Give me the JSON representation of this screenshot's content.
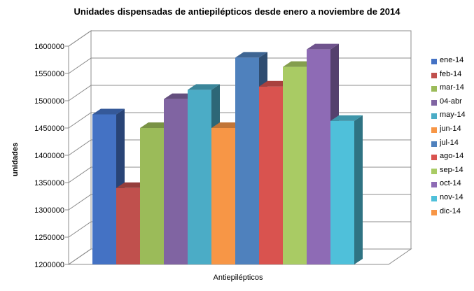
{
  "chart_data": {
    "type": "bar",
    "title": "Unidades dispensadas de antiepilépticos desde enero a noviembre de 2014",
    "ylabel": "unidades",
    "xlabel": "Antiepilépticos",
    "categories": [
      "Antiepilépticos"
    ],
    "ylim": [
      1200000,
      1600000
    ],
    "yticks": [
      "1200000",
      "1250000",
      "1300000",
      "1350000",
      "1400000",
      "1450000",
      "1500000",
      "1550000",
      "1600000"
    ],
    "grid": true,
    "legend_position": "right",
    "series": [
      {
        "name": "ene-14",
        "value": 1475000,
        "color": "#4472C4"
      },
      {
        "name": "feb-14",
        "value": 1340000,
        "color": "#C0504D"
      },
      {
        "name": "mar-14",
        "value": 1450000,
        "color": "#9BBB59"
      },
      {
        "name": "04-abr",
        "value": 1503000,
        "color": "#8064A2"
      },
      {
        "name": "may-14",
        "value": 1520000,
        "color": "#4BACC6"
      },
      {
        "name": "jun-14",
        "value": 1450000,
        "color": "#F79646"
      },
      {
        "name": "jul-14",
        "value": 1579000,
        "color": "#4F81BD"
      },
      {
        "name": "ago-14",
        "value": 1526000,
        "color": "#D9534F"
      },
      {
        "name": "sep-14",
        "value": 1562000,
        "color": "#A9CB64"
      },
      {
        "name": "oct-14",
        "value": 1594000,
        "color": "#8E6BB5"
      },
      {
        "name": "nov-14",
        "value": 1463000,
        "color": "#4FC0DA"
      },
      {
        "name": "dic-14",
        "value": null,
        "color": "#F79646"
      }
    ]
  }
}
